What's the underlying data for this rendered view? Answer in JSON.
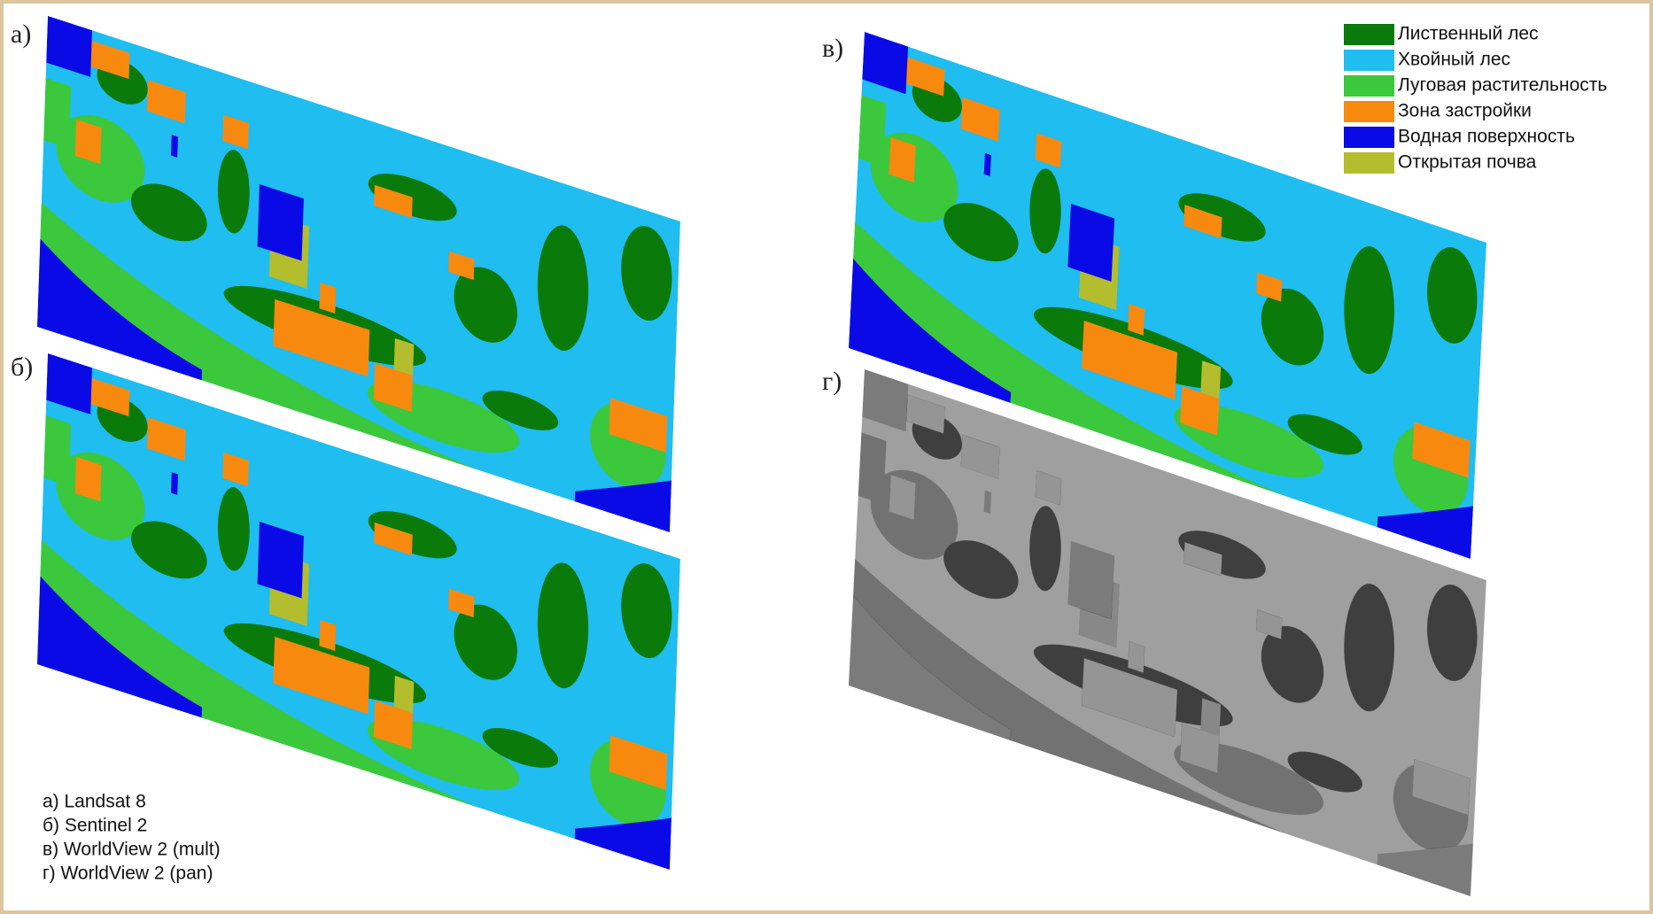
{
  "panels": [
    {
      "label": "а)"
    },
    {
      "label": "б)"
    },
    {
      "label": "в)"
    },
    {
      "label": "г)"
    }
  ],
  "legend": [
    {
      "name": "Лиственный лес",
      "color": "#0a7a0a"
    },
    {
      "name": "Хвойный лес",
      "color": "#1fbdf0"
    },
    {
      "name": "Луговая растительность",
      "color": "#3cc83c"
    },
    {
      "name": "Зона застройки",
      "color": "#f8890f"
    },
    {
      "name": "Водная поверхность",
      "color": "#0a0ae6"
    },
    {
      "name": "Открытая почва",
      "color": "#b4bd2d"
    }
  ],
  "captions": [
    "а) Landsat 8",
    "б) Sentinel 2",
    "в) WorldView 2 (mult)",
    "г) WorldView 2 (pan)"
  ]
}
